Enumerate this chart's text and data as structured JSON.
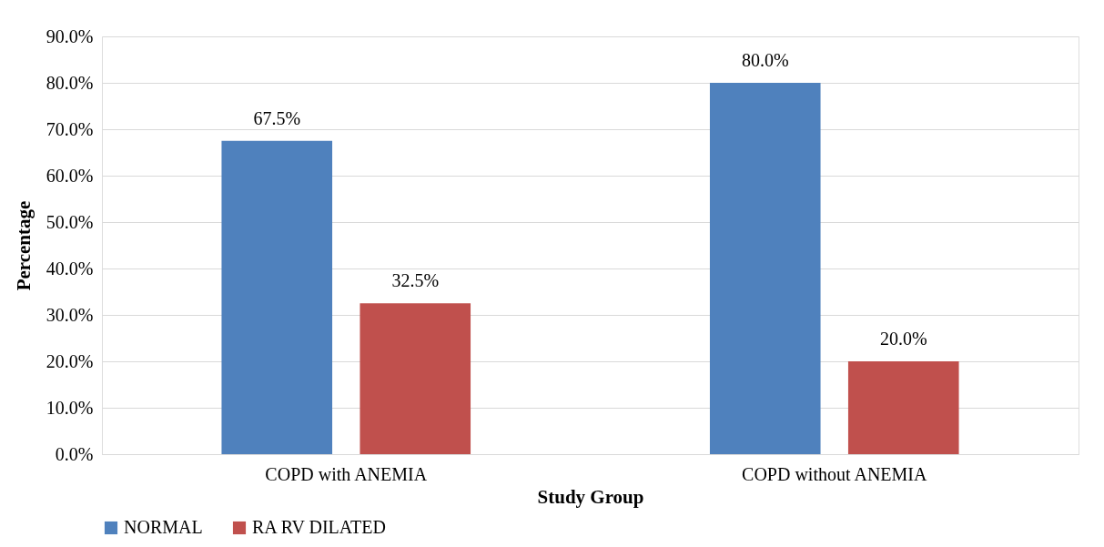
{
  "chart_data": {
    "type": "bar",
    "xlabel": "Study Group",
    "ylabel": "Percentage",
    "categories": [
      "COPD with ANEMIA",
      "COPD without ANEMIA"
    ],
    "series": [
      {
        "name": "NORMAL",
        "color": "#4f81bd",
        "values": [
          67.5,
          80.0
        ],
        "value_labels": [
          "67.5%",
          "80.0%"
        ]
      },
      {
        "name": "RA RV DILATED",
        "color": "#c0504d",
        "values": [
          32.5,
          20.0
        ],
        "value_labels": [
          "32.5%",
          "20.0%"
        ]
      }
    ],
    "ylim": [
      0,
      90
    ],
    "yticks": [
      {
        "value": 0,
        "label": "0.0%"
      },
      {
        "value": 10,
        "label": "10.0%"
      },
      {
        "value": 20,
        "label": "20.0%"
      },
      {
        "value": 30,
        "label": "30.0%"
      },
      {
        "value": 40,
        "label": "40.0%"
      },
      {
        "value": 50,
        "label": "50.0%"
      },
      {
        "value": 60,
        "label": "60.0%"
      },
      {
        "value": 70,
        "label": "70.0%"
      },
      {
        "value": 80,
        "label": "80.0%"
      },
      {
        "value": 90,
        "label": "90.0%"
      }
    ],
    "grid": "y",
    "legend": "bottom"
  }
}
